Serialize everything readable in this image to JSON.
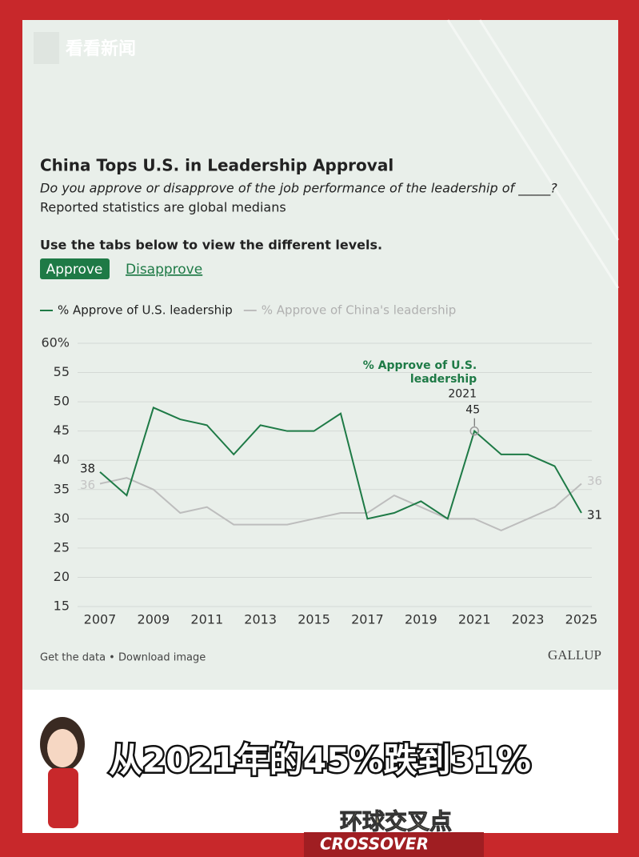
{
  "watermark": "看看新闻",
  "chart_data": {
    "type": "line",
    "title": "China Tops U.S. in Leadership Approval",
    "subtitle": "Do you approve or disapprove of the job performance of the leadership of _____?",
    "note": "Reported statistics are global medians",
    "instruction": "Use the tabs below to view the different levels.",
    "tabs": [
      "Approve",
      "Disapprove"
    ],
    "x": [
      2007,
      2008,
      2009,
      2010,
      2011,
      2012,
      2013,
      2014,
      2015,
      2016,
      2017,
      2018,
      2019,
      2020,
      2021,
      2022,
      2023,
      2024,
      2025
    ],
    "series": [
      {
        "name": "% Approve of U.S. leadership",
        "color": "#1e7a46",
        "values": [
          38,
          34,
          49,
          47,
          46,
          41,
          46,
          45,
          45,
          48,
          30,
          31,
          33,
          30,
          45,
          41,
          41,
          39,
          31
        ]
      },
      {
        "name": "% Approve of China's leadership",
        "color": "#bdbdbd",
        "values": [
          36,
          37,
          35,
          31,
          32,
          29,
          29,
          29,
          30,
          31,
          31,
          34,
          32,
          30,
          30,
          28,
          30,
          32,
          36
        ]
      }
    ],
    "annotation": {
      "text": "% Approve of U.S. leadership",
      "x": 2021
    },
    "xlim": [
      2007,
      2025
    ],
    "xticks": [
      2007,
      2009,
      2011,
      2013,
      2015,
      2017,
      2019,
      2021,
      2023,
      2025
    ],
    "ylim": [
      15,
      60
    ],
    "yticks": [
      15,
      20,
      25,
      30,
      35,
      40,
      45,
      50,
      55,
      {
        "value": 60,
        "label": "60%"
      }
    ],
    "grid": true,
    "footer": "Get the data • Download image",
    "source": "GALLUP"
  },
  "caption": "从2021年的45%跌到31%",
  "logo": {
    "cn": "环球交叉点",
    "en": "CROSSOVER"
  }
}
